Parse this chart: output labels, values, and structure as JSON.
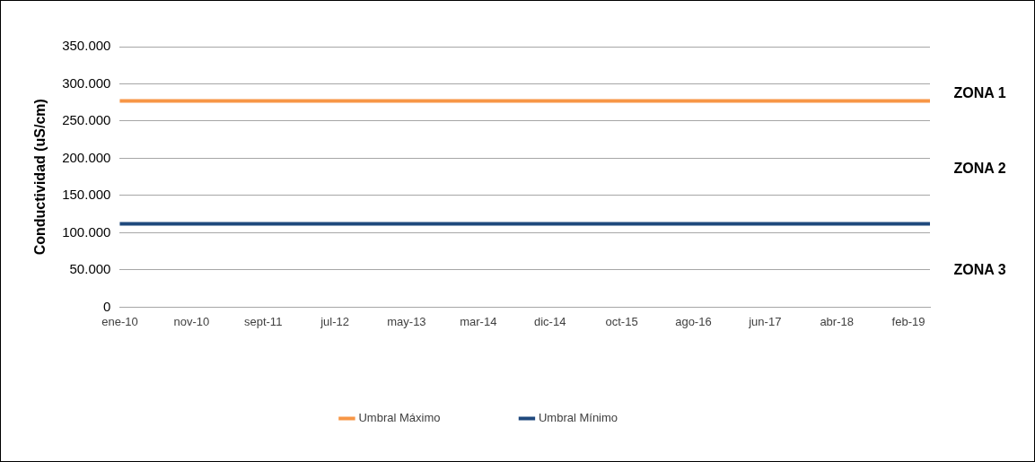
{
  "chart_data": {
    "type": "line",
    "ylabel": "Conductividad (uS/cm)",
    "categories": [
      "ene-10",
      null,
      null,
      null,
      null,
      null,
      null,
      null,
      null,
      null,
      "nov-10",
      null,
      null,
      null,
      null,
      null,
      null,
      null,
      null,
      null,
      "sept-11",
      null,
      null,
      null,
      null,
      null,
      null,
      null,
      null,
      null,
      "jul-12",
      null,
      null,
      null,
      null,
      null,
      null,
      null,
      null,
      null,
      "may-13",
      null,
      null,
      null,
      null,
      null,
      null,
      null,
      null,
      null,
      "mar-14",
      null,
      null,
      null,
      null,
      null,
      null,
      null,
      null,
      null,
      "dic-14",
      null,
      null,
      null,
      null,
      null,
      null,
      null,
      null,
      null,
      "oct-15",
      null,
      null,
      null,
      null,
      null,
      null,
      null,
      null,
      null,
      "ago-16",
      null,
      null,
      null,
      null,
      null,
      null,
      null,
      null,
      null,
      "jun-17",
      null,
      null,
      null,
      null,
      null,
      null,
      null,
      null,
      null,
      "abr-18",
      null,
      null,
      null,
      null,
      null,
      null,
      null,
      null,
      null,
      "feb-19",
      null,
      null,
      null
    ],
    "series": [
      {
        "name": "Umbral Máximo",
        "color": "#f79646",
        "values": [
          277000,
          277000,
          277000,
          277000,
          277000,
          277000,
          277000,
          277000,
          277000,
          277000,
          277000,
          277000,
          277000,
          277000,
          277000,
          277000,
          277000,
          277000,
          277000,
          277000,
          277000,
          277000,
          277000,
          277000,
          277000,
          277000,
          277000,
          277000,
          277000,
          277000,
          277000,
          277000,
          277000,
          277000,
          277000,
          277000,
          277000,
          277000,
          277000,
          277000,
          277000,
          277000,
          277000,
          277000,
          277000,
          277000,
          277000,
          277000,
          277000,
          277000,
          277000,
          277000,
          277000,
          277000,
          277000,
          277000,
          277000,
          277000,
          277000,
          277000,
          277000,
          277000,
          277000,
          277000,
          277000,
          277000,
          277000,
          277000,
          277000,
          277000,
          277000,
          277000,
          277000,
          277000,
          277000,
          277000,
          277000,
          277000,
          277000,
          277000,
          277000,
          277000,
          277000,
          277000,
          277000,
          277000,
          277000,
          277000,
          277000,
          277000,
          277000,
          277000,
          277000,
          277000,
          277000,
          277000,
          277000,
          277000,
          277000,
          277000,
          277000,
          277000,
          277000,
          277000,
          277000,
          277000,
          277000,
          277000,
          277000,
          277000,
          277000,
          277000,
          277000,
          277000
        ]
      },
      {
        "name": "Umbral Mínimo",
        "color": "#1f497d",
        "values": [
          112000,
          112000,
          112000,
          112000,
          112000,
          112000,
          112000,
          112000,
          112000,
          112000,
          112000,
          112000,
          112000,
          112000,
          112000,
          112000,
          112000,
          112000,
          112000,
          112000,
          112000,
          112000,
          112000,
          112000,
          112000,
          112000,
          112000,
          112000,
          112000,
          112000,
          112000,
          112000,
          112000,
          112000,
          112000,
          112000,
          112000,
          112000,
          112000,
          112000,
          112000,
          112000,
          112000,
          112000,
          112000,
          112000,
          112000,
          112000,
          112000,
          112000,
          112000,
          112000,
          112000,
          112000,
          112000,
          112000,
          112000,
          112000,
          112000,
          112000,
          112000,
          112000,
          112000,
          112000,
          112000,
          112000,
          112000,
          112000,
          112000,
          112000,
          112000,
          112000,
          112000,
          112000,
          112000,
          112000,
          112000,
          112000,
          112000,
          112000,
          112000,
          112000,
          112000,
          112000,
          112000,
          112000,
          112000,
          112000,
          112000,
          112000,
          112000,
          112000,
          112000,
          112000,
          112000,
          112000,
          112000,
          112000,
          112000,
          112000,
          112000,
          112000,
          112000,
          112000,
          112000,
          112000,
          112000,
          112000,
          112000,
          112000,
          112000,
          112000,
          112000,
          112000
        ]
      }
    ],
    "ylim": [
      0,
      350000
    ],
    "yticks": [
      0,
      {
        "value": 50000,
        "label": "50.000"
      },
      {
        "value": 100000,
        "label": "100.000"
      },
      {
        "value": 150000,
        "label": "150.000"
      },
      {
        "value": 200000,
        "label": "200.000"
      },
      {
        "value": 250000,
        "label": "250.000"
      },
      {
        "value": 300000,
        "label": "300.000"
      },
      {
        "value": 350000,
        "label": "350.000"
      }
    ],
    "grid": "y",
    "legend": "bottom",
    "marker": "none",
    "line_style": "solid",
    "annotations": [
      "ZONA 1",
      "ZONA 2",
      "ZONA 3"
    ]
  }
}
